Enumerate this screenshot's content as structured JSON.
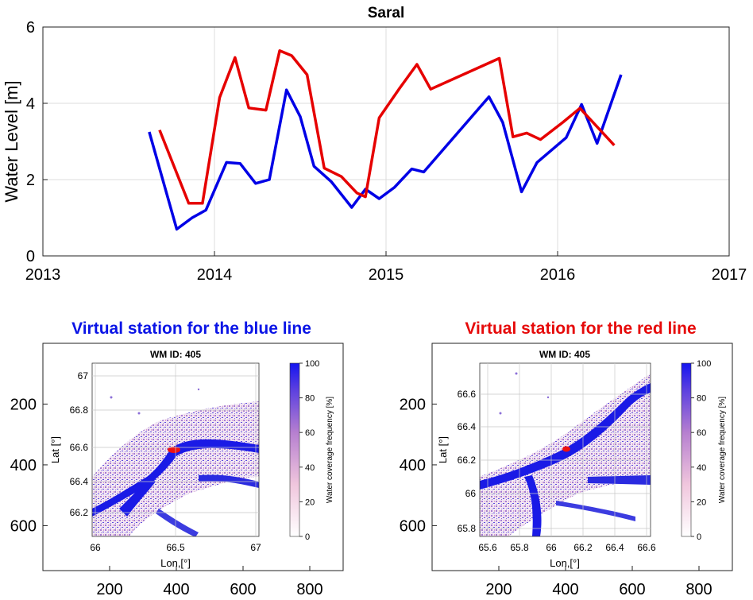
{
  "main_chart": {
    "title": "Saral",
    "ylabel": "Water Level [m]",
    "x_ticks": [
      "2013",
      "2014",
      "2015",
      "2016",
      "2017"
    ],
    "y_ticks": [
      "0",
      "2",
      "4",
      "6"
    ]
  },
  "left_panel": {
    "heading": "Virtual station for the blue line",
    "heading_color": "#0a14e6",
    "map_title": "WM ID: 405",
    "lat_label": "Lat [°]",
    "lon_label": "Lon,[°]",
    "lat_ticks": [
      "67",
      "66.8",
      "66.6",
      "66.4",
      "66.2"
    ],
    "lon_ticks": [
      "66",
      "66.5",
      "67"
    ],
    "colorbar_label": "Water coverage frequency [%]",
    "colorbar_ticks": [
      "100",
      "80",
      "60",
      "40",
      "20",
      "0"
    ],
    "outer_y_ticks": [
      "200",
      "400",
      "600"
    ],
    "outer_x_ticks": [
      "200",
      "400",
      "600",
      "800"
    ]
  },
  "right_panel": {
    "heading": "Virtual station for the red line",
    "heading_color": "#e60a0a",
    "map_title": "WM ID: 405",
    "lat_label": "Lat [°]",
    "lon_label": "Lon,[°]",
    "lat_ticks": [
      "66.6",
      "66.4",
      "66.2",
      "66",
      "65.8"
    ],
    "lon_ticks": [
      "65.6",
      "65.8",
      "66",
      "66.2",
      "66.4",
      "66.6"
    ],
    "colorbar_label": "Water coverage frequency [%]",
    "colorbar_ticks": [
      "100",
      "80",
      "60",
      "40",
      "20",
      "0"
    ],
    "outer_y_ticks": [
      "200",
      "400",
      "600"
    ],
    "outer_x_ticks": [
      "200",
      "400",
      "600",
      "800"
    ]
  },
  "chart_data": {
    "type": "line",
    "title": "Saral",
    "xlabel": "",
    "ylabel": "Water Level [m]",
    "xlim": [
      2013,
      2017
    ],
    "ylim": [
      0,
      6
    ],
    "grid": true,
    "series": [
      {
        "color": "#0000e6",
        "x": [
          2013.62,
          2013.78,
          2013.87,
          2013.95,
          2014.07,
          2014.15,
          2014.24,
          2014.32,
          2014.42,
          2014.5,
          2014.58,
          2014.68,
          2014.8,
          2014.88,
          2014.96,
          2015.05,
          2015.15,
          2015.22,
          2015.6,
          2015.68,
          2015.79,
          2015.88,
          2016.05,
          2016.14,
          2016.23,
          2016.37
        ],
        "y": [
          3.25,
          0.7,
          1.0,
          1.2,
          2.45,
          2.42,
          1.9,
          2.0,
          4.35,
          3.65,
          2.35,
          1.95,
          1.27,
          1.75,
          1.5,
          1.8,
          2.28,
          2.2,
          4.17,
          3.5,
          1.68,
          2.45,
          3.1,
          3.97,
          2.95,
          4.75
        ]
      },
      {
        "color": "#e60000",
        "x": [
          2013.68,
          2013.85,
          2013.93,
          2014.03,
          2014.12,
          2014.2,
          2014.3,
          2014.38,
          2014.45,
          2014.54,
          2014.64,
          2014.74,
          2014.83,
          2014.88,
          2014.96,
          2015.08,
          2015.18,
          2015.26,
          2015.66,
          2015.74,
          2015.82,
          2015.9,
          2016.03,
          2016.13,
          2016.33
        ],
        "y": [
          3.3,
          1.38,
          1.38,
          4.15,
          5.2,
          3.88,
          3.82,
          5.38,
          5.25,
          4.75,
          2.3,
          2.08,
          1.65,
          1.55,
          3.62,
          4.4,
          5.02,
          4.37,
          5.18,
          3.12,
          3.22,
          3.05,
          3.5,
          3.87,
          2.9
        ]
      }
    ]
  }
}
